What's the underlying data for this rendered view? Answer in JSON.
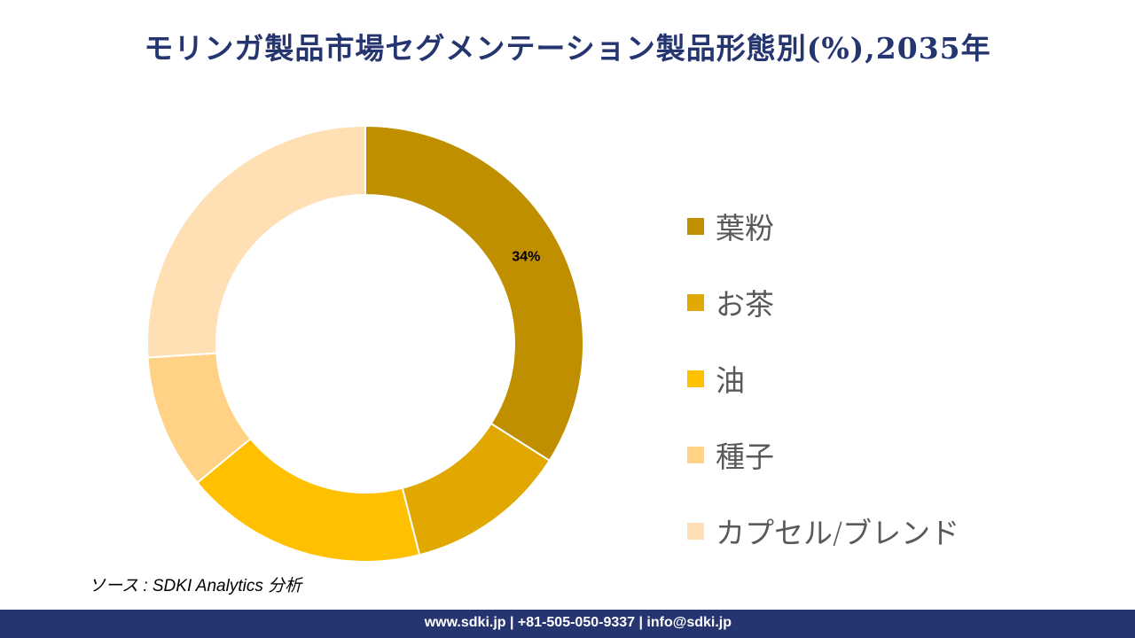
{
  "title": "モリンガ製品市場セグメンテーション製品形態別(%),2035年",
  "chart_data": {
    "type": "pie",
    "donut": true,
    "title": "モリンガ製品市場セグメンテーション製品形態別(%),2035年",
    "categories": [
      "葉粉",
      "お茶",
      "油",
      "種子",
      "カプセル/ブレンド"
    ],
    "values": [
      34,
      12,
      18,
      10,
      26
    ],
    "data_labels": [
      "34%",
      "",
      "",
      "",
      ""
    ],
    "colors": [
      "#BF8F00",
      "#E0A800",
      "#FFC000",
      "#FFD285",
      "#FFE0B5"
    ],
    "legend": "right"
  },
  "source": "ソース : SDKI Analytics 分析",
  "footer": "www.sdki.jp | +81-505-050-9337 | info@sdki.jp"
}
